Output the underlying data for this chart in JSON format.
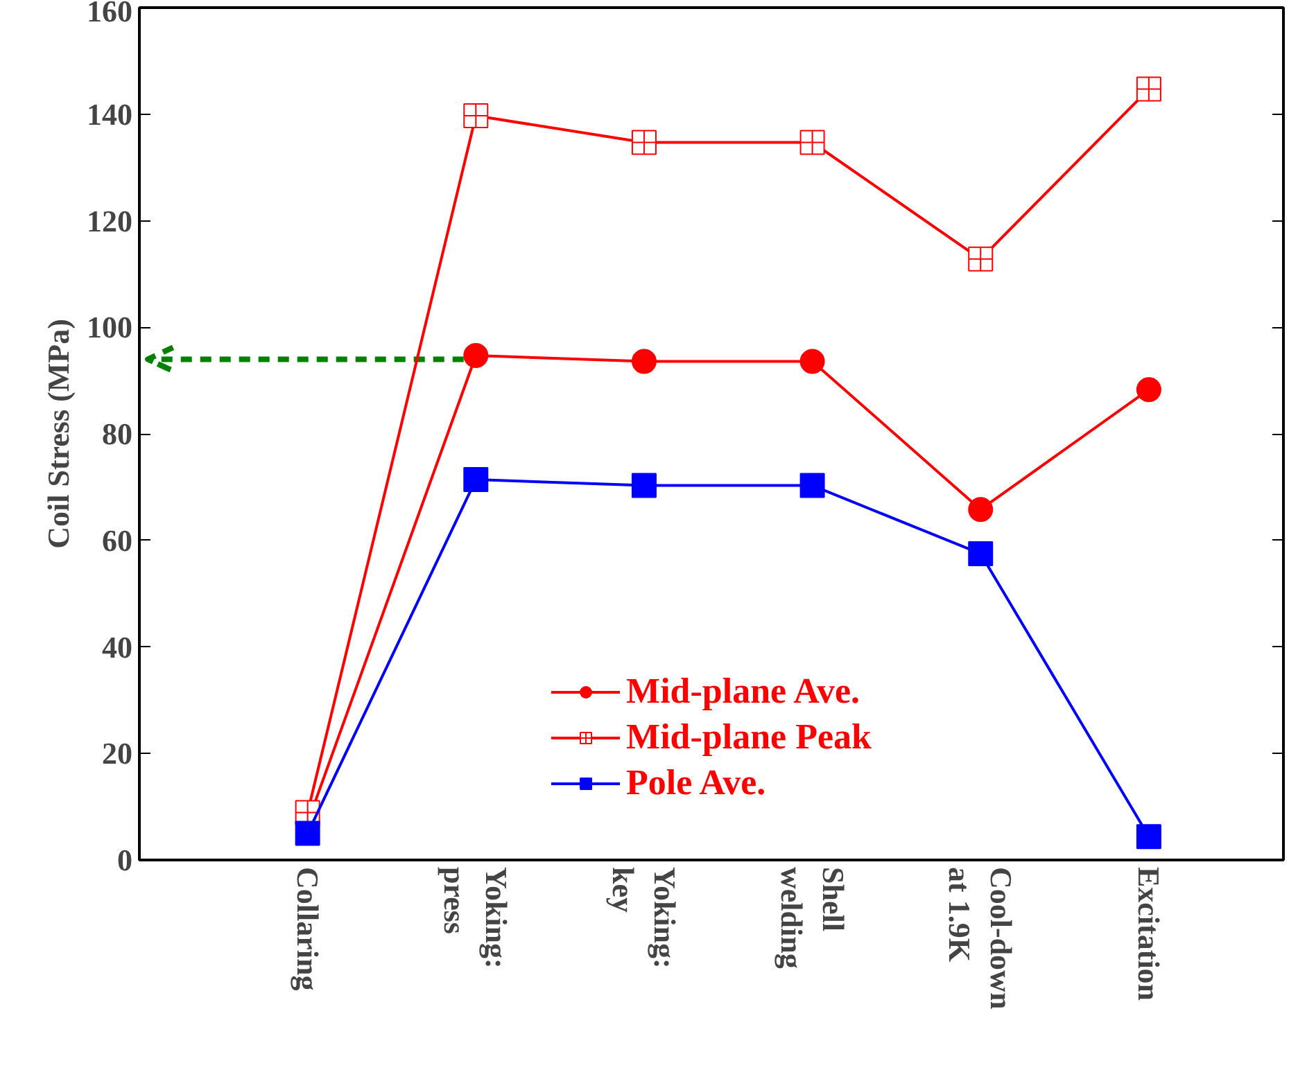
{
  "chart_data": {
    "type": "line",
    "ylabel": "Coil Stress (MPa)",
    "categories": [
      "Collaring",
      "Yoking:\npress",
      "Yoking:\nkey",
      "Shell\nwelding",
      "Cool-down\nat 1.9K",
      "Excitation"
    ],
    "series": [
      {
        "name": "Mid-plane Ave.",
        "color": "#ff0000",
        "marker": "circle",
        "values": [
          7,
          94.7,
          93.6,
          93.6,
          65.8,
          88.3
        ]
      },
      {
        "name": "Mid-plane Peak",
        "color": "#ff0000",
        "marker": "cross",
        "values": [
          8.9,
          139.7,
          134.7,
          134.7,
          112.8,
          144.7
        ]
      },
      {
        "name": "Pole Ave.",
        "color": "#0000ff",
        "marker": "square",
        "values": [
          5,
          71.4,
          70.3,
          70.3,
          57.5,
          4.4
        ]
      }
    ],
    "ylim": [
      0,
      160
    ],
    "yticks": [
      0,
      20,
      40,
      60,
      80,
      100,
      120,
      140,
      160
    ],
    "ref_lines": [
      {
        "axis": "y",
        "value": 94,
        "color": "#008000",
        "line_style": "dashed"
      }
    ],
    "legend": "bottom",
    "grid": false
  }
}
